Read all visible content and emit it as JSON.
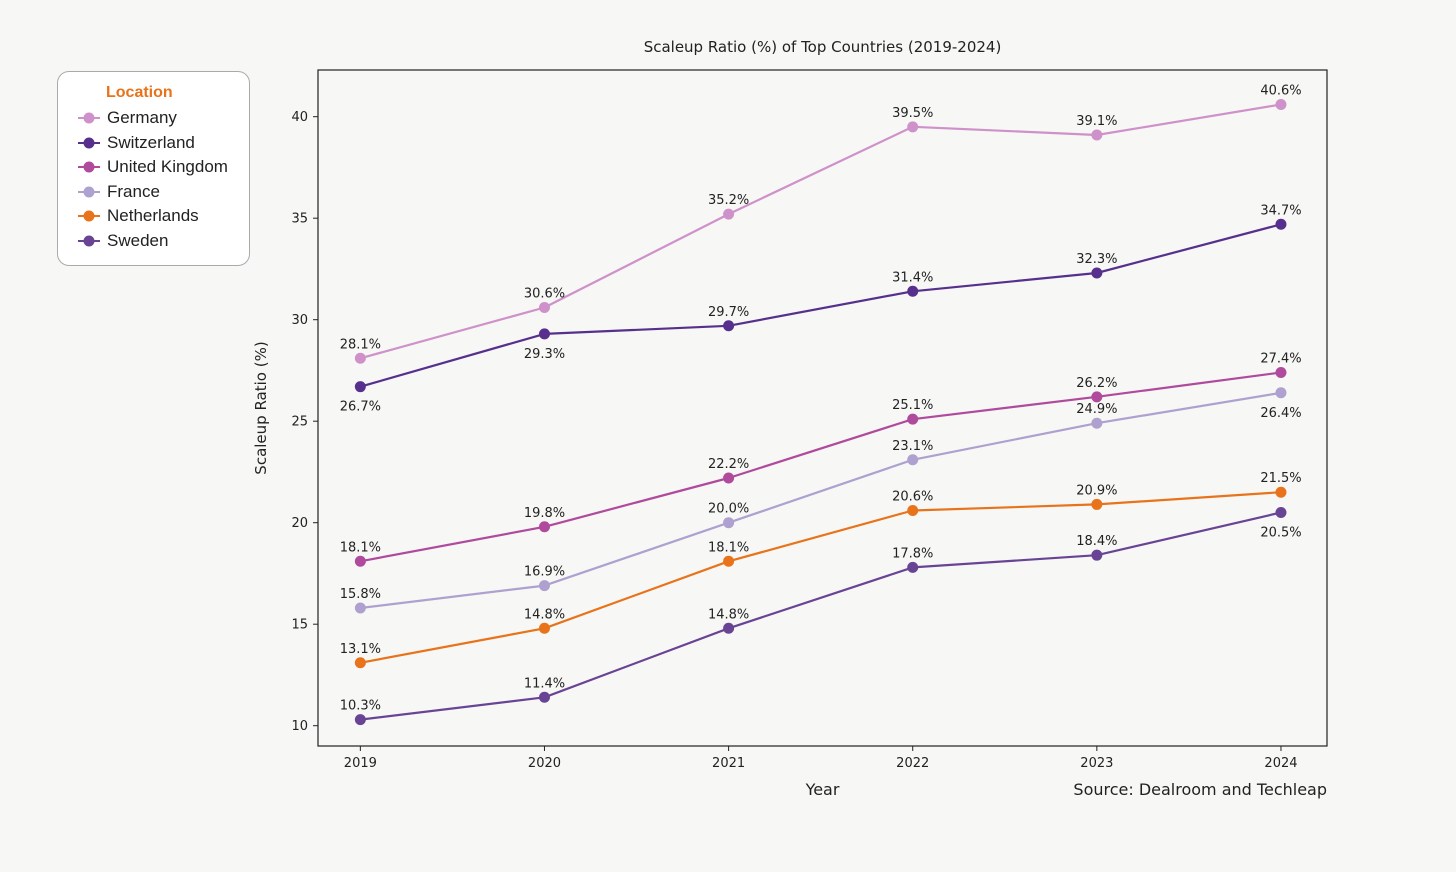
{
  "chart_data": {
    "type": "line",
    "title": "Scaleup Ratio (%) of Top Countries (2019-2024)",
    "xlabel": "Year",
    "ylabel": "Scaleup Ratio (%)",
    "source": "Source: Dealroom and Techleap",
    "x": [
      "2019",
      "2020",
      "2021",
      "2022",
      "2023",
      "2024"
    ],
    "xlim": [
      2018.77,
      2024.25
    ],
    "ylim": [
      9.0,
      42.3
    ],
    "yticks": [
      10,
      15,
      20,
      25,
      30,
      35,
      40
    ],
    "grid": false,
    "legend": {
      "title": "Location",
      "title_color": "#e8731a",
      "placement": "upper-left-outside"
    },
    "series": [
      {
        "name": "Germany",
        "color": "#cf91c9",
        "values": [
          28.1,
          30.6,
          35.2,
          39.5,
          39.1,
          40.6
        ],
        "labels": [
          "28.1%",
          "30.6%",
          "35.2%",
          "39.5%",
          "39.1%",
          "40.6%"
        ],
        "label_pos": [
          "above",
          "above",
          "above",
          "above",
          "above",
          "above"
        ]
      },
      {
        "name": "Switzerland",
        "color": "#56308c",
        "values": [
          26.7,
          29.3,
          29.7,
          31.4,
          32.3,
          34.7
        ],
        "labels": [
          "26.7%",
          "29.3%",
          "29.7%",
          "31.4%",
          "32.3%",
          "34.7%"
        ],
        "label_pos": [
          "below",
          "below",
          "above",
          "above",
          "above",
          "above"
        ]
      },
      {
        "name": "United Kingdom",
        "color": "#b04a9c",
        "values": [
          18.1,
          19.8,
          22.2,
          25.1,
          26.2,
          27.4
        ],
        "labels": [
          "18.1%",
          "19.8%",
          "22.2%",
          "25.1%",
          "26.2%",
          "27.4%"
        ],
        "label_pos": [
          "above",
          "above",
          "above",
          "above",
          "above",
          "above"
        ]
      },
      {
        "name": "France",
        "color": "#aea1cf",
        "values": [
          15.8,
          16.9,
          20.0,
          23.1,
          24.9,
          26.4
        ],
        "labels": [
          "15.8%",
          "16.9%",
          "20.0%",
          "23.1%",
          "24.9%",
          "26.4%"
        ],
        "label_pos": [
          "above",
          "above",
          "above",
          "above",
          "above",
          "below"
        ]
      },
      {
        "name": "Netherlands",
        "color": "#e8731a",
        "values": [
          13.1,
          14.8,
          18.1,
          20.6,
          20.9,
          21.5
        ],
        "labels": [
          "13.1%",
          "14.8%",
          "18.1%",
          "20.6%",
          "20.9%",
          "21.5%"
        ],
        "label_pos": [
          "above",
          "above",
          "above",
          "above",
          "above",
          "above"
        ]
      },
      {
        "name": "Sweden",
        "color": "#6a4494",
        "values": [
          10.3,
          11.4,
          14.8,
          17.8,
          18.4,
          20.5
        ],
        "labels": [
          "10.3%",
          "11.4%",
          "14.8%",
          "17.8%",
          "18.4%",
          "20.5%"
        ],
        "label_pos": [
          "above",
          "above",
          "above",
          "above",
          "above",
          "below"
        ]
      }
    ]
  }
}
